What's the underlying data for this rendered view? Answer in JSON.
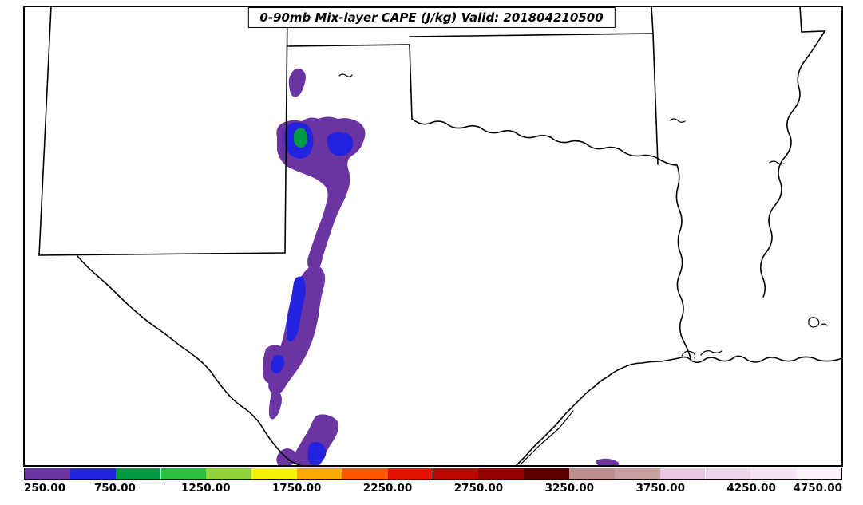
{
  "title": {
    "text": "0-90mb Mix-layer CAPE (J/kg) Valid: 201804210500"
  },
  "colors": {
    "background": "#FFFFFF",
    "border": "#000000",
    "cape_level_250": "#6A35A3",
    "cape_level_500": "#2222DF",
    "cape_level_750": "#009A44"
  },
  "colorbar": {
    "min": 250,
    "max": 4750,
    "tick_labels": [
      "250.00",
      "750.00",
      "1250.00",
      "1750.00",
      "2250.00",
      "2750.00",
      "3250.00",
      "3750.00",
      "4250.00",
      "4750.00"
    ],
    "segments": [
      {
        "from": 250,
        "to": 500,
        "color": "#6A35A3"
      },
      {
        "from": 500,
        "to": 750,
        "color": "#2222DF"
      },
      {
        "from": 750,
        "to": 1000,
        "color": "#009A44"
      },
      {
        "from": 1000,
        "to": 1250,
        "color": "#2DBE3C"
      },
      {
        "from": 1250,
        "to": 1500,
        "color": "#90D338"
      },
      {
        "from": 1500,
        "to": 1750,
        "color": "#F6F203"
      },
      {
        "from": 1750,
        "to": 2000,
        "color": "#FFA800"
      },
      {
        "from": 2000,
        "to": 2250,
        "color": "#FF5400"
      },
      {
        "from": 2250,
        "to": 2500,
        "color": "#E41400"
      },
      {
        "from": 2500,
        "to": 2750,
        "color": "#BE0400"
      },
      {
        "from": 2750,
        "to": 3000,
        "color": "#960000"
      },
      {
        "from": 3000,
        "to": 3250,
        "color": "#5E0000"
      },
      {
        "from": 3250,
        "to": 3500,
        "color": "#BC8F8F"
      },
      {
        "from": 3500,
        "to": 3750,
        "color": "#C9A0A0"
      },
      {
        "from": 3750,
        "to": 4000,
        "color": "#E9C6E2"
      },
      {
        "from": 4000,
        "to": 4250,
        "color": "#EFD4EA"
      },
      {
        "from": 4250,
        "to": 4500,
        "color": "#F6E3F2"
      },
      {
        "from": 4500,
        "to": 4750,
        "color": "#FCF1FA"
      }
    ]
  },
  "chart_data": {
    "type": "filled-contour-map",
    "title": "0-90mb Mix-layer CAPE (J/kg) Valid: 201804210500",
    "variable": "0-90mb Mix-layer CAPE",
    "units": "J/kg",
    "valid_time": "201804210500",
    "contour_levels": [
      250,
      500,
      750,
      1000,
      1250,
      1500,
      1750,
      2000,
      2250,
      2500,
      2750,
      3000,
      3250,
      3500,
      3750,
      4000,
      4250,
      4500,
      4750
    ],
    "region": "Texas / Oklahoma / New Mexico (south-central US)",
    "legend_position": "bottom horizontal colorbar",
    "shaded_features": [
      {
        "area": "Texas panhandle / eastern New Mexico border blob",
        "levels_present": [
          250,
          500,
          750
        ],
        "note": "purple area with blue patches and a small green core"
      },
      {
        "area": "narrow north-south corridor through west-central Texas",
        "levels_present": [
          250,
          500
        ],
        "note": "purple strip with blue core"
      },
      {
        "area": "south-central Texas near Rio Grande",
        "levels_present": [
          250,
          500
        ],
        "note": "scattered purple patches with one blue blob at bottom edge"
      },
      {
        "area": "small streak near upper Texas Gulf coast",
        "levels_present": [
          250
        ],
        "note": "thin purple dash"
      }
    ]
  }
}
